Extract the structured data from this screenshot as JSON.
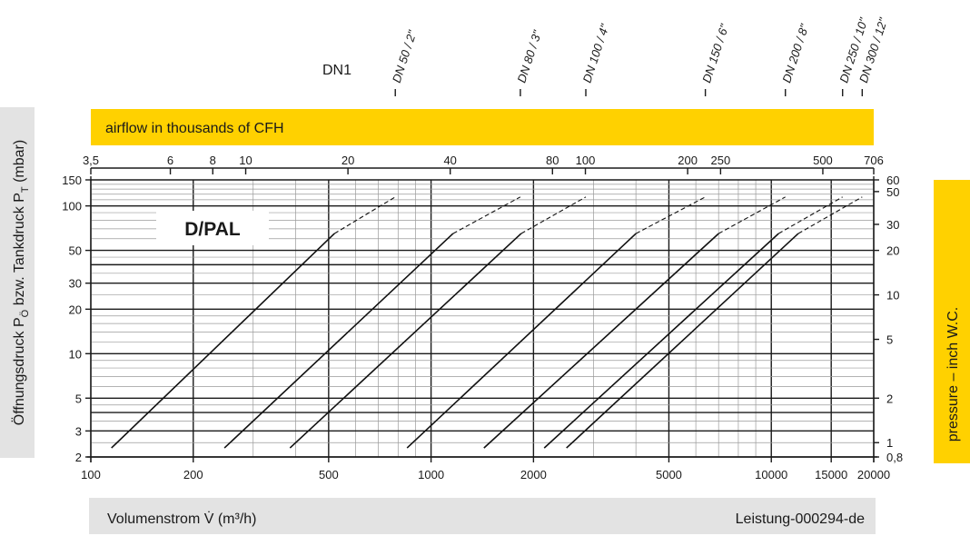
{
  "chart_data": {
    "type": "line",
    "title": "D/PAL",
    "dn_label": "DN1",
    "xlabel": "Volumenstrom V̇ (m³/h)",
    "ylabel": "Öffnungsdruck P",
    "ylabel_sub1": "Ö",
    "ylabel_mid": " bzw. Tankdruck P",
    "ylabel_sub2": "T",
    "ylabel_unit": " (mbar)",
    "x2label": "airflow in thousands of CFH",
    "y2label": "pressure – inch W.C.",
    "code": "Leistung-000294-de",
    "x_scale": "log",
    "y_scale": "log",
    "xlim": [
      100,
      20000
    ],
    "ylim": [
      2,
      150
    ],
    "grid": true,
    "x_ticks": [
      100,
      200,
      500,
      1000,
      2000,
      5000,
      10000,
      15000,
      20000
    ],
    "x_tick_labels": [
      "100",
      "200",
      "500",
      "1000",
      "2000",
      "5000",
      "10000",
      "15000",
      "20000"
    ],
    "y_ticks": [
      2,
      3,
      5,
      10,
      20,
      30,
      50,
      100,
      150
    ],
    "y_tick_labels": [
      "2",
      "3",
      "5",
      "10",
      "20",
      "30",
      "50",
      "100",
      "150"
    ],
    "x2_ticks": [
      3.5,
      6,
      8,
      10,
      20,
      40,
      80,
      100,
      200,
      250,
      500,
      706
    ],
    "x2_tick_labels": [
      "3,5",
      "6",
      "8",
      "10",
      "20",
      "40",
      "80",
      "100",
      "200",
      "250",
      "500",
      "706"
    ],
    "y2_ticks": [
      0.8,
      1,
      2,
      5,
      10,
      20,
      30,
      50,
      60
    ],
    "y2_tick_labels": [
      "0,8",
      "1",
      "2",
      "5",
      "10",
      "20",
      "30",
      "50",
      "60"
    ],
    "series": [
      {
        "name": "DN 50 / 2\"",
        "solid": [
          [
            115,
            2.3
          ],
          [
            520,
            65
          ]
        ],
        "dashed": [
          [
            520,
            65
          ],
          [
            785,
            115
          ]
        ]
      },
      {
        "name": "DN 80 / 3\"",
        "solid": [
          [
            247,
            2.3
          ],
          [
            1160,
            65
          ]
        ],
        "dashed": [
          [
            1160,
            65
          ],
          [
            1830,
            115
          ]
        ]
      },
      {
        "name": "DN 100 / 4\"",
        "solid": [
          [
            385,
            2.3
          ],
          [
            1840,
            65
          ]
        ],
        "dashed": [
          [
            1840,
            65
          ],
          [
            2850,
            115
          ]
        ]
      },
      {
        "name": "DN 150 / 6\"",
        "solid": [
          [
            850,
            2.3
          ],
          [
            4000,
            65
          ]
        ],
        "dashed": [
          [
            4000,
            65
          ],
          [
            6400,
            115
          ]
        ]
      },
      {
        "name": "DN 200 / 8\"",
        "solid": [
          [
            1430,
            2.3
          ],
          [
            7000,
            65
          ]
        ],
        "dashed": [
          [
            7000,
            65
          ],
          [
            11000,
            115
          ]
        ]
      },
      {
        "name": "DN 250 / 10\"",
        "solid": [
          [
            2150,
            2.3
          ],
          [
            10500,
            65
          ]
        ],
        "dashed": [
          [
            10500,
            65
          ],
          [
            16200,
            115
          ]
        ]
      },
      {
        "name": "DN 300 / 12\"",
        "solid": [
          [
            2500,
            2.3
          ],
          [
            12000,
            65
          ]
        ],
        "dashed": [
          [
            12000,
            65
          ],
          [
            18500,
            115
          ]
        ]
      }
    ]
  }
}
